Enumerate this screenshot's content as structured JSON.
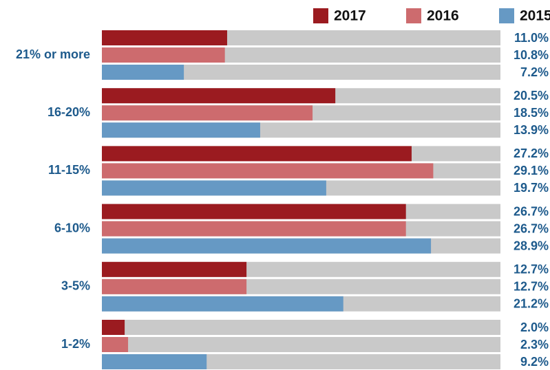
{
  "chart_data": {
    "type": "bar",
    "orientation": "horizontal",
    "categories": [
      "21% or more",
      "16-20%",
      "11-15%",
      "6-10%",
      "3-5%",
      "1-2%"
    ],
    "series": [
      {
        "name": "2017",
        "color": "#9b1b20",
        "values": [
          11.0,
          20.5,
          27.2,
          26.7,
          12.7,
          2.0
        ],
        "value_labels": [
          "11.0%",
          "20.5%",
          "27.2%",
          "26.7%",
          "12.7%",
          "2.0%"
        ]
      },
      {
        "name": "2016",
        "color": "#cd6b6e",
        "values": [
          10.8,
          18.5,
          29.1,
          26.7,
          12.7,
          2.3
        ],
        "value_labels": [
          "10.8%",
          "18.5%",
          "29.1%",
          "26.7%",
          "12.7%",
          "2.3%"
        ]
      },
      {
        "name": "2015",
        "color": "#6699c4",
        "values": [
          7.2,
          13.9,
          19.7,
          28.9,
          21.2,
          9.2
        ],
        "value_labels": [
          "7.2%",
          "13.9%",
          "19.7%",
          "28.9%",
          "21.2%",
          "9.2%"
        ]
      }
    ],
    "xlim": [
      0,
      35
    ],
    "track_color": "#c9c9c9",
    "legend": "top-right"
  }
}
